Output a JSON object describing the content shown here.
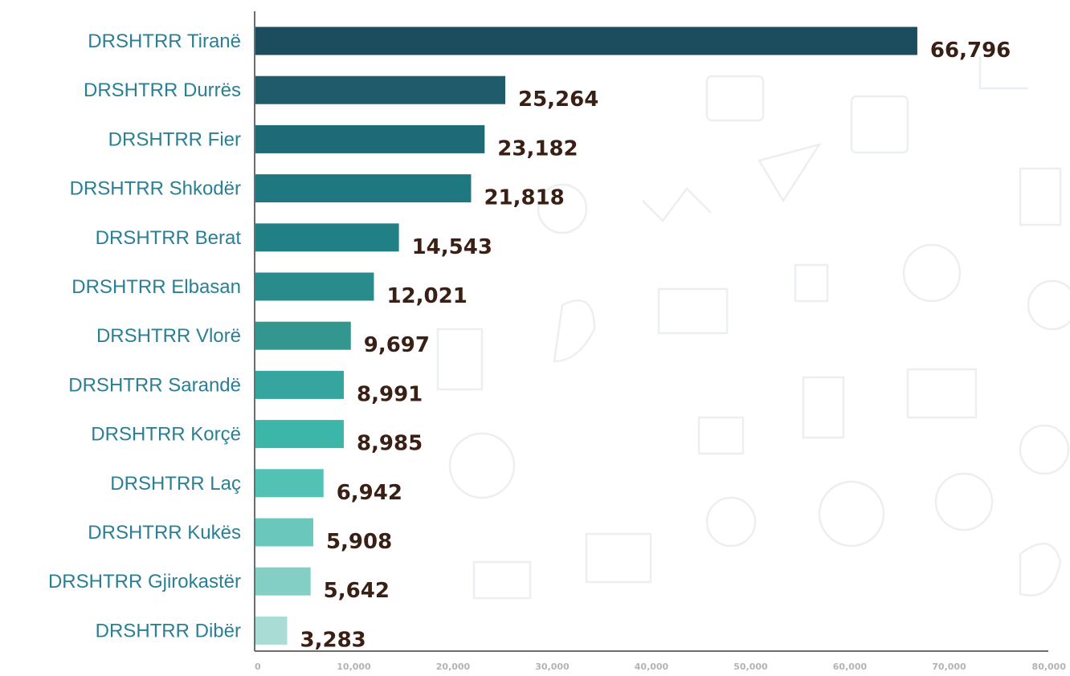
{
  "chart_data": {
    "type": "bar",
    "orientation": "horizontal",
    "title": "",
    "xlabel": "",
    "ylabel": "",
    "categories": [
      "DRSHTRR Tiranë",
      "DRSHTRR Durrës",
      "DRSHTRR Fier",
      "DRSHTRR Shkodër",
      "DRSHTRR Berat",
      "DRSHTRR Elbasan",
      "DRSHTRR Vlorë",
      "DRSHTRR Sarandë",
      "DRSHTRR Korçë",
      "DRSHTRR Laç",
      "DRSHTRR Kukës",
      "DRSHTRR Gjirokastër",
      "DRSHTRR Dibër"
    ],
    "values": [
      66796,
      25264,
      23182,
      21818,
      14543,
      12021,
      9697,
      8991,
      8985,
      6942,
      5908,
      5642,
      3283
    ],
    "value_labels": [
      "66,796",
      "25,264",
      "23,182",
      "21,818",
      "14,543",
      "12,021",
      "9,697",
      "8,991",
      "8,985",
      "6,942",
      "5,908",
      "5,642",
      "3,283"
    ],
    "xlim": [
      0,
      80000
    ],
    "xticks": [
      0,
      10000,
      20000,
      30000,
      40000,
      50000,
      60000,
      70000,
      80000
    ],
    "xtick_labels": [
      "0",
      "10,000",
      "20,000",
      "30,000",
      "40,000",
      "50,000",
      "60,000",
      "70,000",
      "80,000"
    ],
    "grid": false,
    "legend": "none",
    "bar_colors": [
      "#1b4d5e",
      "#1f5b6b",
      "#1e6a77",
      "#1f7880",
      "#217f86",
      "#2a8b8d",
      "#33968f",
      "#37a59f",
      "#3cb6a9",
      "#52c2b4",
      "#69c8bb",
      "#83cfc5",
      "#a9dcd5"
    ],
    "colors": {
      "category_label": "#2b7f95",
      "value_label": "#3a1f14",
      "tick_label": "#b3b3b3",
      "axis": "#6d6d6d",
      "background": "#ffffff"
    }
  }
}
